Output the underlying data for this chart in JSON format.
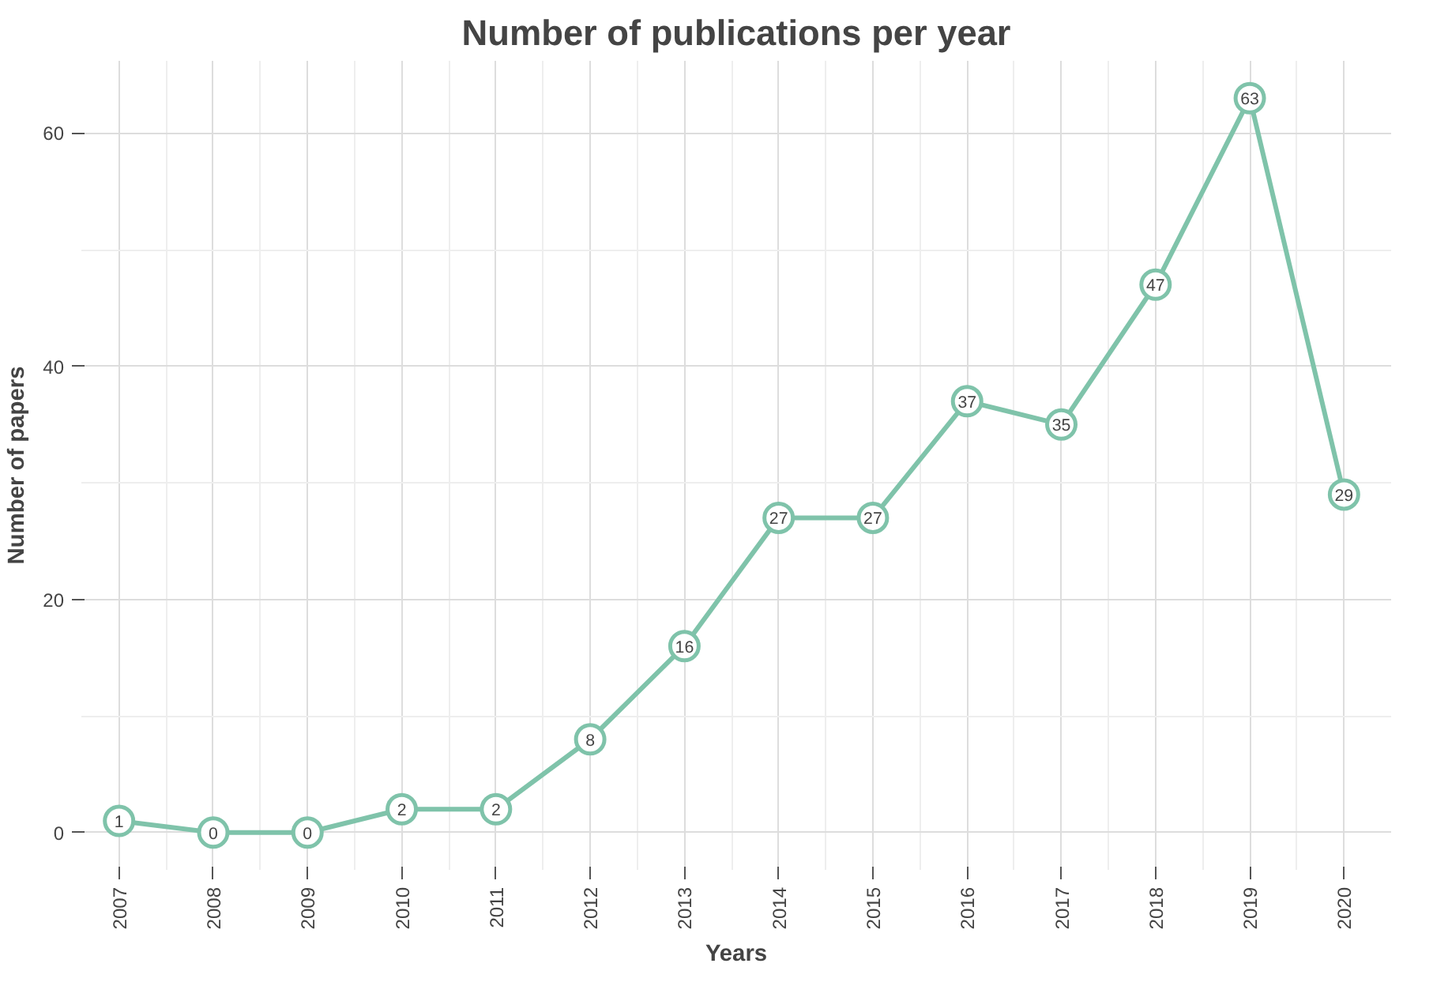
{
  "chart_data": {
    "type": "line",
    "title": "Number of publications per year",
    "xlabel": "Years",
    "ylabel": "Number of papers",
    "x": [
      2007,
      2008,
      2009,
      2010,
      2011,
      2012,
      2013,
      2014,
      2015,
      2016,
      2017,
      2018,
      2019,
      2020
    ],
    "series": [
      {
        "color": "#7fc3aa",
        "values": [
          1,
          0,
          0,
          2,
          2,
          8,
          16,
          27,
          27,
          37,
          35,
          47,
          63,
          29
        ]
      }
    ],
    "xlim": [
      2006.6,
      2020.5
    ],
    "ylim": [
      -3.2,
      66.2
    ],
    "xticks": [
      2007,
      2008,
      2009,
      2010,
      2011,
      2012,
      2013,
      2014,
      2015,
      2016,
      2017,
      2018,
      2019,
      2020
    ],
    "yticks": [
      0,
      20,
      40,
      60
    ],
    "grid": true,
    "marker": "circle",
    "data_labels": true,
    "line_style": "solid"
  }
}
